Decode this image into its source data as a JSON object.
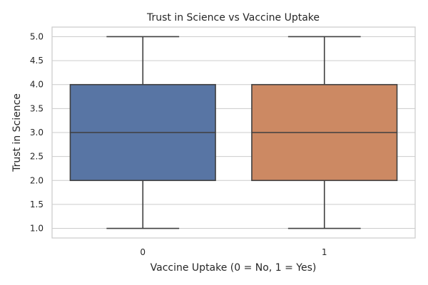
{
  "chart_data": {
    "type": "box",
    "title": "Trust in Science vs Vaccine Uptake",
    "xlabel": "Vaccine Uptake (0 = No, 1 = Yes)",
    "ylabel": "Trust in Science",
    "categories": [
      "0",
      "1"
    ],
    "ylim": [
      0.8,
      5.2
    ],
    "yticks": [
      "1.0",
      "1.5",
      "2.0",
      "2.5",
      "3.0",
      "3.5",
      "4.0",
      "4.5",
      "5.0"
    ],
    "grid": true,
    "boxes": [
      {
        "category": "0",
        "min": 1.0,
        "q1": 2.0,
        "median": 3.0,
        "q3": 4.0,
        "max": 5.0,
        "color": "#5875a4"
      },
      {
        "category": "1",
        "min": 1.0,
        "q1": 2.0,
        "median": 3.0,
        "q3": 4.0,
        "max": 5.0,
        "color": "#cc8963"
      }
    ]
  },
  "colors": {
    "axis_frame": "#cccccc",
    "grid": "#cccccc",
    "box_edge": "#3f3f3f",
    "text": "#262626"
  }
}
